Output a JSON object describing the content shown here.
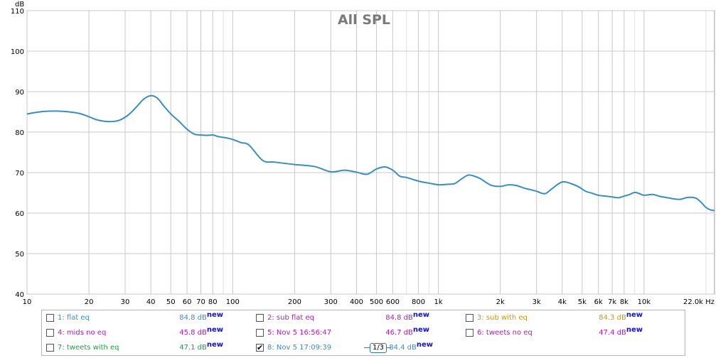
{
  "chart_data": {
    "type": "line",
    "title": "All SPL",
    "xscale": "log",
    "xlim": [
      10,
      22000
    ],
    "ylim": [
      40,
      110
    ],
    "ylabel": "dB",
    "xlabel": "Hz",
    "y_ticks": [
      40,
      50,
      60,
      70,
      80,
      90,
      100,
      110
    ],
    "x_ticks": [
      {
        "v": 10,
        "label": "10"
      },
      {
        "v": 20,
        "label": "20"
      },
      {
        "v": 30,
        "label": "30"
      },
      {
        "v": 40,
        "label": "40"
      },
      {
        "v": 50,
        "label": "50"
      },
      {
        "v": 60,
        "label": "60"
      },
      {
        "v": 70,
        "label": "70"
      },
      {
        "v": 80,
        "label": "80"
      },
      {
        "v": 100,
        "label": "100"
      },
      {
        "v": 200,
        "label": "200"
      },
      {
        "v": 300,
        "label": "300"
      },
      {
        "v": 400,
        "label": "400"
      },
      {
        "v": 500,
        "label": "500"
      },
      {
        "v": 600,
        "label": "600"
      },
      {
        "v": 800,
        "label": "800"
      },
      {
        "v": 1000,
        "label": "1k"
      },
      {
        "v": 2000,
        "label": "2k"
      },
      {
        "v": 3000,
        "label": "3k"
      },
      {
        "v": 4000,
        "label": "4k"
      },
      {
        "v": 5000,
        "label": "5k"
      },
      {
        "v": 6000,
        "label": "6k"
      },
      {
        "v": 7000,
        "label": "7k"
      },
      {
        "v": 8000,
        "label": "8k"
      },
      {
        "v": 10000,
        "label": "10k"
      },
      {
        "v": 22000,
        "label": "22.0k Hz"
      }
    ],
    "series": [
      {
        "name": "8: Nov 5 17:09:39",
        "color": "#3a8ebf",
        "x": [
          10,
          12,
          14,
          16,
          18,
          20,
          22,
          25,
          28,
          31,
          34,
          37,
          40,
          43,
          46,
          50,
          55,
          60,
          65,
          70,
          75,
          80,
          85,
          90,
          95,
          100,
          110,
          120,
          140,
          160,
          200,
          250,
          300,
          350,
          400,
          450,
          500,
          550,
          600,
          650,
          700,
          800,
          900,
          1000,
          1100,
          1200,
          1300,
          1400,
          1500,
          1600,
          1800,
          2000,
          2200,
          2400,
          2600,
          2800,
          3000,
          3300,
          3600,
          4000,
          4400,
          4800,
          5200,
          5600,
          6000,
          6500,
          7000,
          7500,
          8000,
          8500,
          9000,
          9500,
          10000,
          11000,
          12000,
          13000,
          14000,
          15000,
          16000,
          17000,
          18000,
          19000,
          20000,
          21000,
          22000
        ],
        "y": [
          84.5,
          85.1,
          85.2,
          85.0,
          84.6,
          83.8,
          83.0,
          82.6,
          82.9,
          84.2,
          86.2,
          88.2,
          89.0,
          88.4,
          86.6,
          84.5,
          82.6,
          80.7,
          79.5,
          79.3,
          79.2,
          79.3,
          78.9,
          78.7,
          78.5,
          78.2,
          77.4,
          76.8,
          73.0,
          72.6,
          72.0,
          71.5,
          70.2,
          70.6,
          70.1,
          69.6,
          70.9,
          71.4,
          70.6,
          69.1,
          68.8,
          67.9,
          67.4,
          67.0,
          67.1,
          67.3,
          68.5,
          69.4,
          69.1,
          68.5,
          66.9,
          66.6,
          67.0,
          66.8,
          66.2,
          65.8,
          65.4,
          64.8,
          66.2,
          67.7,
          67.3,
          66.5,
          65.4,
          64.9,
          64.4,
          64.2,
          64.0,
          63.8,
          64.2,
          64.6,
          65.1,
          64.8,
          64.4,
          64.6,
          64.1,
          63.8,
          63.5,
          63.4,
          63.8,
          63.9,
          63.6,
          62.6,
          61.4,
          60.8,
          60.6
        ]
      }
    ]
  },
  "smoothing": {
    "label": "1/3"
  },
  "legend": {
    "rows": [
      [
        {
          "checked": false,
          "label": "1: flat eq",
          "level": "84.8 dB",
          "new": "new",
          "color": "#3a8ebf"
        },
        {
          "checked": false,
          "label": "2: sub flat eq",
          "level": "84.8 dB",
          "new": "new",
          "color": "#b01fb0"
        },
        {
          "checked": false,
          "label": "3: sub with eq",
          "level": "84.3 dB",
          "new": "new",
          "color": "#c79a10"
        }
      ],
      [
        {
          "checked": false,
          "label": "4: mids no eq",
          "level": "45.8 dB",
          "new": "new",
          "color": "#b01fb0"
        },
        {
          "checked": false,
          "label": "5: Nov 5 16:56:47",
          "level": "46.7 dB",
          "new": "new",
          "color": "#b01fb0"
        },
        {
          "checked": false,
          "label": "6: tweets no eq",
          "level": "47.4 dB",
          "new": "new",
          "color": "#b01fb0"
        }
      ],
      [
        {
          "checked": false,
          "label": "7: tweets with eq",
          "level": "47.1 dB",
          "new": "new",
          "color": "#1fa04a"
        },
        {
          "checked": true,
          "label": "8: Nov 5 17:09:39",
          "level": "84.4 dB",
          "new": "new",
          "color": "#3a8ebf"
        }
      ]
    ]
  }
}
